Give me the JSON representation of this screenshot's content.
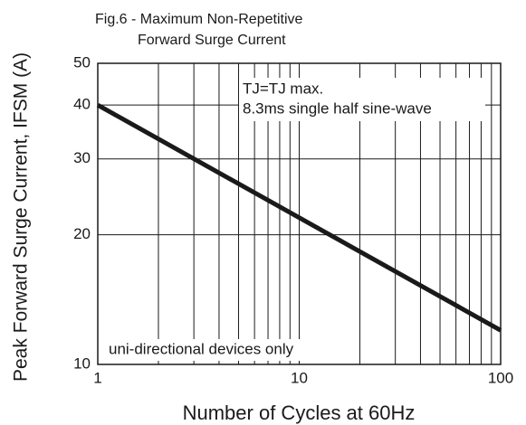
{
  "chart_data": {
    "type": "line",
    "title": [
      "Fig.6 -  Maximum Non-Repetitive",
      "Forward Surge Current"
    ],
    "ylabel": "Peak Forward Surge Current, IFSM (A)",
    "xlabel": "Number of Cycles at 60Hz",
    "annotations": [
      "TJ=TJ max.",
      "8.3ms single half sine-wave",
      "uni-directional devices only"
    ],
    "x": [
      1,
      100
    ],
    "series": [
      {
        "color": "#1a1a1a",
        "values": [
          40,
          12
        ]
      }
    ],
    "xlim": [
      1,
      100
    ],
    "xticks": [
      1,
      10,
      100
    ],
    "ylim": [
      10,
      50
    ],
    "yticks": [
      10,
      20,
      30,
      40,
      50
    ],
    "xscale": "log",
    "yscale": "log",
    "grid": true
  }
}
